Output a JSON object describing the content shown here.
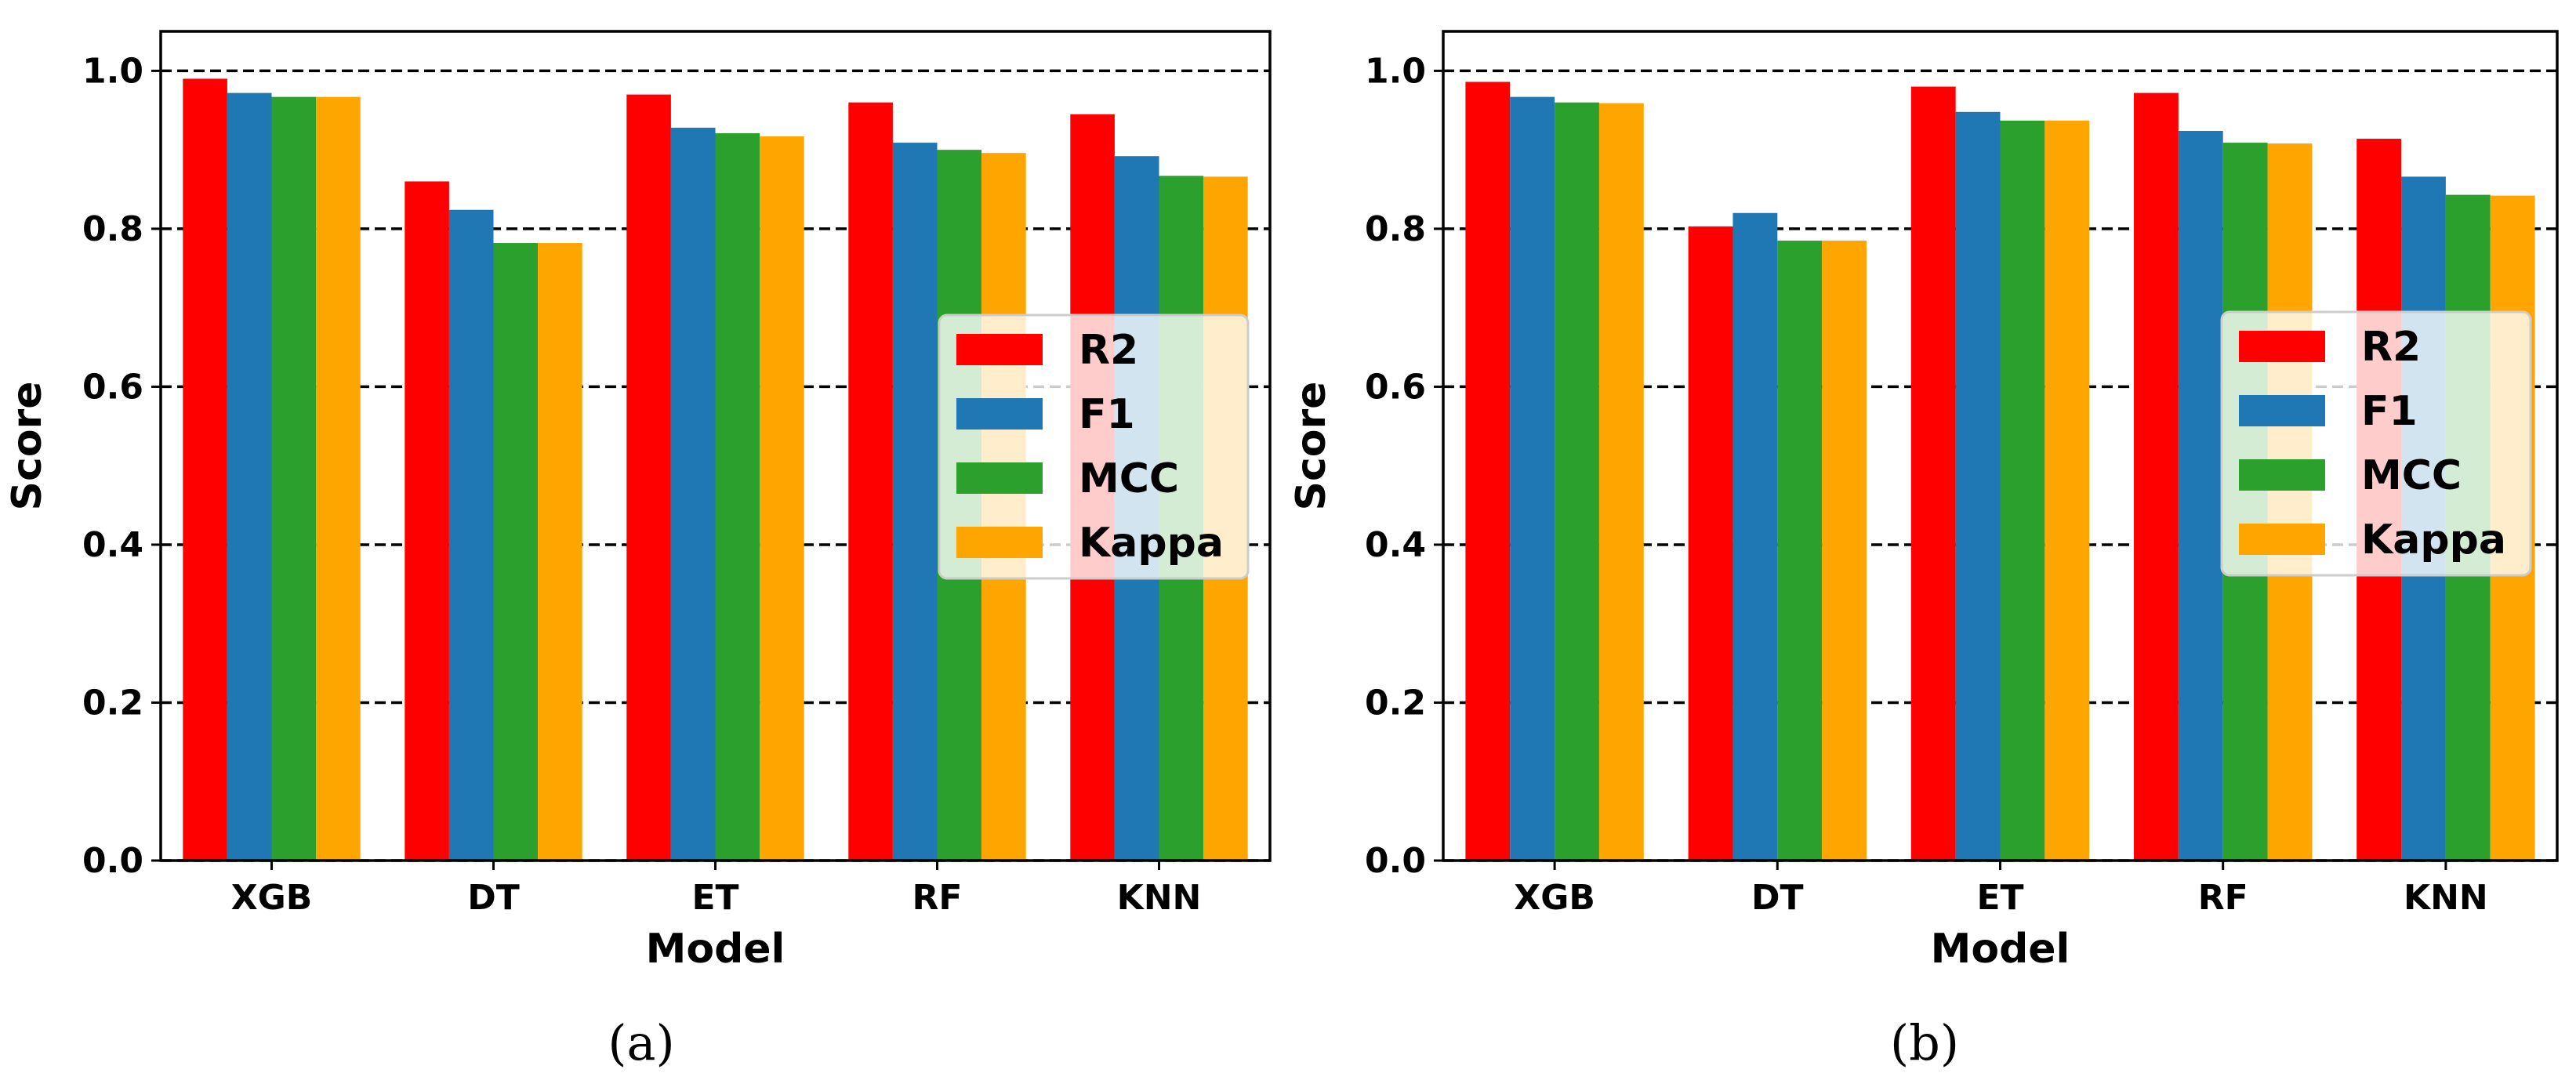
{
  "chart_data": [
    {
      "type": "bar",
      "panel_label": "(a)",
      "xlabel": "Model",
      "ylabel": "Score",
      "categories": [
        "XGB",
        "DT",
        "ET",
        "RF",
        "KNN"
      ],
      "ylim": [
        0,
        1.05
      ],
      "yticks": [
        "0.0",
        "0.2",
        "0.4",
        "0.6",
        "0.8",
        "1.0"
      ],
      "ytick_values": [
        0,
        0.2,
        0.4,
        0.6,
        0.8,
        1.0
      ],
      "grid": "dashed horizontal",
      "legend_position": "center-right",
      "series": [
        {
          "name": "R2",
          "color": "#ff0000",
          "values": [
            0.99,
            0.86,
            0.97,
            0.96,
            0.945
          ]
        },
        {
          "name": "F1",
          "color": "#1f77b4",
          "values": [
            0.972,
            0.824,
            0.928,
            0.909,
            0.892
          ]
        },
        {
          "name": "MCC",
          "color": "#2ca02c",
          "values": [
            0.967,
            0.782,
            0.921,
            0.9,
            0.867
          ]
        },
        {
          "name": "Kappa",
          "color": "#ffa500",
          "values": [
            0.967,
            0.782,
            0.917,
            0.896,
            0.866
          ]
        }
      ]
    },
    {
      "type": "bar",
      "panel_label": "(b)",
      "xlabel": "Model",
      "ylabel": "Score",
      "categories": [
        "XGB",
        "DT",
        "ET",
        "RF",
        "KNN"
      ],
      "ylim": [
        0,
        1.05
      ],
      "yticks": [
        "0.0",
        "0.2",
        "0.4",
        "0.6",
        "0.8",
        "1.0"
      ],
      "ytick_values": [
        0,
        0.2,
        0.4,
        0.6,
        0.8,
        1.0
      ],
      "grid": "dashed horizontal",
      "legend_position": "center-right",
      "series": [
        {
          "name": "R2",
          "color": "#ff0000",
          "values": [
            0.986,
            0.803,
            0.98,
            0.972,
            0.914
          ]
        },
        {
          "name": "F1",
          "color": "#1f77b4",
          "values": [
            0.967,
            0.82,
            0.948,
            0.924,
            0.866
          ]
        },
        {
          "name": "MCC",
          "color": "#2ca02c",
          "values": [
            0.96,
            0.785,
            0.937,
            0.909,
            0.843
          ]
        },
        {
          "name": "Kappa",
          "color": "#ffa500",
          "values": [
            0.959,
            0.785,
            0.937,
            0.908,
            0.842
          ]
        }
      ]
    }
  ]
}
